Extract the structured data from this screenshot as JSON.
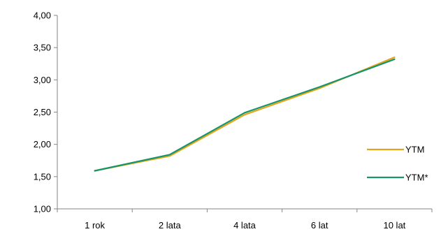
{
  "chart_data": {
    "type": "line",
    "categories": [
      "1 rok",
      "2 lata",
      "4 lata",
      "6 lat",
      "10 lat"
    ],
    "series": [
      {
        "name": "YTM",
        "values": [
          1.59,
          1.82,
          2.46,
          2.87,
          3.35
        ],
        "color": "#E8A317"
      },
      {
        "name": "YTM*",
        "values": [
          1.59,
          1.84,
          2.49,
          2.89,
          3.32
        ],
        "color": "#16956C"
      }
    ],
    "ylim": [
      1.0,
      4.0
    ],
    "yticks": [
      "1,00",
      "1,50",
      "2,00",
      "2,50",
      "3,00",
      "3,50",
      "4,00"
    ],
    "grid": false,
    "legend": "right",
    "axis_color": "#868686"
  }
}
